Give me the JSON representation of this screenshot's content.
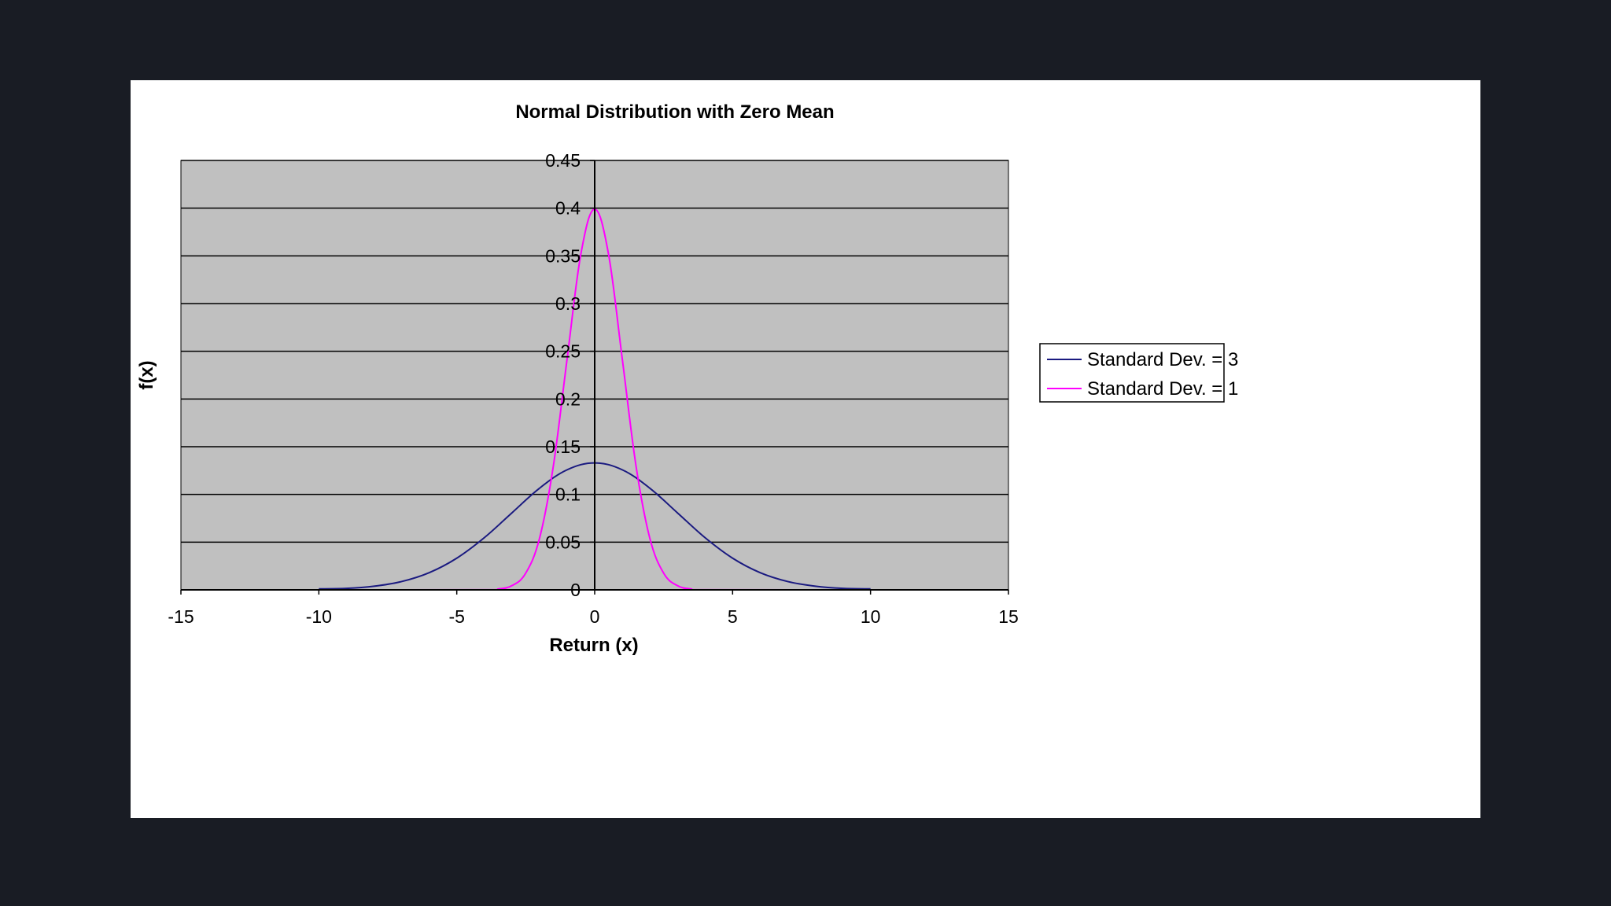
{
  "colors": {
    "background": "#191c24",
    "frame": "#ffffff",
    "plot_area": "#c0c0c0",
    "grid": "#000000"
  },
  "chart_data": {
    "type": "line",
    "title": "Normal Distribution with Zero Mean",
    "xlabel": "Return (x)",
    "ylabel": "f(x)",
    "xlim": [
      -15,
      15
    ],
    "ylim": [
      0,
      0.45
    ],
    "x_ticks": [
      "-15",
      "-10",
      "-5",
      "0",
      "5",
      "10",
      "15"
    ],
    "y_ticks": [
      "0",
      "0.05",
      "0.1",
      "0.15",
      "0.2",
      "0.25",
      "0.3",
      "0.35",
      "0.4",
      "0.45"
    ],
    "grid": true,
    "legend_position": "right",
    "series": [
      {
        "name": "Standard Dev. = 3",
        "color": "#1a1a80",
        "x": [
          -10,
          -9,
          -8,
          -7,
          -6,
          -5,
          -4,
          -3,
          -2,
          -1,
          0,
          1,
          2,
          3,
          4,
          5,
          6,
          7,
          8,
          9,
          10
        ],
        "values": [
          0.001,
          0.0015,
          0.0038,
          0.0087,
          0.018,
          0.0332,
          0.0547,
          0.0807,
          0.1065,
          0.1258,
          0.133,
          0.1258,
          0.1065,
          0.0807,
          0.0547,
          0.0332,
          0.018,
          0.0087,
          0.0038,
          0.0015,
          0.001
        ]
      },
      {
        "name": "Standard Dev. = 1",
        "color": "#ff00ff",
        "x": [
          -12,
          -4,
          -3.5,
          -3,
          -2.5,
          -2,
          -1.5,
          -1,
          -0.5,
          0,
          0.5,
          1,
          1.5,
          2,
          2.5,
          3,
          3.5,
          4,
          12
        ],
        "values": [
          0,
          0.0001,
          0.0009,
          0.0044,
          0.0175,
          0.054,
          0.1295,
          0.242,
          0.3521,
          0.3989,
          0.3521,
          0.242,
          0.1295,
          0.054,
          0.0175,
          0.0044,
          0.0009,
          0.0001,
          0
        ]
      }
    ]
  }
}
